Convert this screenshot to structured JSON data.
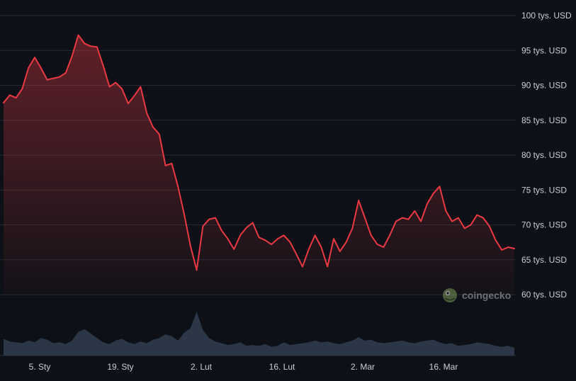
{
  "chart_data": {
    "type": "area",
    "title": "",
    "xlabel": "",
    "ylabel": "",
    "currency_unit": "tys. USD",
    "y_ticks": [
      "100 tys. USD",
      "95 tys. USD",
      "90 tys. USD",
      "85 tys. USD",
      "80 tys. USD",
      "75 tys. USD",
      "70 tys. USD",
      "65 tys. USD",
      "60 tys. USD"
    ],
    "x_ticks": [
      "5. Sty",
      "19. Sty",
      "2. Lut",
      "16. Lut",
      "2. Mar",
      "16. Mar"
    ],
    "ylim": [
      60000,
      100000
    ],
    "grid": true,
    "colors": {
      "line": "#ea3943",
      "fill_top": "#ea3943",
      "volume": "#2b3646",
      "grid": "#222a33",
      "background": "#0d1117"
    },
    "series": [
      {
        "values": [
          [
            0,
            87500
          ],
          [
            1,
            88600
          ],
          [
            2,
            88200
          ],
          [
            3,
            89500
          ],
          [
            4,
            92500
          ],
          [
            5,
            94000
          ],
          [
            6,
            92500
          ],
          [
            7,
            90800
          ],
          [
            8,
            91000
          ],
          [
            9,
            91200
          ],
          [
            10,
            91800
          ],
          [
            11,
            94200
          ],
          [
            12,
            97200
          ],
          [
            13,
            96000
          ],
          [
            14,
            95600
          ],
          [
            15,
            95500
          ],
          [
            16,
            92800
          ],
          [
            17,
            89800
          ],
          [
            18,
            90400
          ],
          [
            19,
            89500
          ],
          [
            20,
            87400
          ],
          [
            21,
            88500
          ],
          [
            22,
            89800
          ],
          [
            23,
            86000
          ],
          [
            24,
            84000
          ],
          [
            25,
            83000
          ],
          [
            26,
            78500
          ],
          [
            27,
            78800
          ],
          [
            28,
            75500
          ],
          [
            29,
            71500
          ],
          [
            30,
            67000
          ],
          [
            31,
            63500
          ],
          [
            32,
            69800
          ],
          [
            33,
            70800
          ],
          [
            34,
            71000
          ],
          [
            35,
            69200
          ],
          [
            36,
            68000
          ],
          [
            37,
            66500
          ],
          [
            38,
            68500
          ],
          [
            39,
            69600
          ],
          [
            40,
            70300
          ],
          [
            41,
            68200
          ],
          [
            42,
            67800
          ],
          [
            43,
            67200
          ],
          [
            44,
            68000
          ],
          [
            45,
            68500
          ],
          [
            46,
            67500
          ],
          [
            47,
            65800
          ],
          [
            48,
            64000
          ],
          [
            49,
            66500
          ],
          [
            50,
            68500
          ],
          [
            51,
            66800
          ],
          [
            52,
            64000
          ],
          [
            53,
            68000
          ],
          [
            54,
            66200
          ],
          [
            55,
            67500
          ],
          [
            56,
            69500
          ],
          [
            57,
            73500
          ],
          [
            58,
            71000
          ],
          [
            59,
            68500
          ],
          [
            60,
            67200
          ],
          [
            61,
            66800
          ],
          [
            62,
            68500
          ],
          [
            63,
            70500
          ],
          [
            64,
            71000
          ],
          [
            65,
            70800
          ],
          [
            66,
            72000
          ],
          [
            67,
            70500
          ],
          [
            68,
            73000
          ],
          [
            69,
            74500
          ],
          [
            70,
            75500
          ],
          [
            71,
            72000
          ],
          [
            72,
            70500
          ],
          [
            73,
            71000
          ],
          [
            74,
            69500
          ],
          [
            75,
            70000
          ],
          [
            76,
            71400
          ],
          [
            77,
            71000
          ],
          [
            78,
            69800
          ],
          [
            79,
            67800
          ],
          [
            80,
            66400
          ],
          [
            81,
            66800
          ],
          [
            82,
            66600
          ]
        ]
      }
    ],
    "volume": [
      [
        0,
        0.38
      ],
      [
        1,
        0.32
      ],
      [
        2,
        0.3
      ],
      [
        3,
        0.28
      ],
      [
        4,
        0.34
      ],
      [
        5,
        0.3
      ],
      [
        6,
        0.4
      ],
      [
        7,
        0.36
      ],
      [
        8,
        0.28
      ],
      [
        9,
        0.3
      ],
      [
        10,
        0.26
      ],
      [
        11,
        0.34
      ],
      [
        12,
        0.54
      ],
      [
        13,
        0.6
      ],
      [
        14,
        0.5
      ],
      [
        15,
        0.4
      ],
      [
        16,
        0.3
      ],
      [
        17,
        0.26
      ],
      [
        18,
        0.34
      ],
      [
        19,
        0.38
      ],
      [
        20,
        0.3
      ],
      [
        21,
        0.26
      ],
      [
        22,
        0.32
      ],
      [
        23,
        0.28
      ],
      [
        24,
        0.36
      ],
      [
        25,
        0.4
      ],
      [
        26,
        0.48
      ],
      [
        27,
        0.44
      ],
      [
        28,
        0.34
      ],
      [
        29,
        0.52
      ],
      [
        30,
        0.62
      ],
      [
        31,
        1.0
      ],
      [
        32,
        0.58
      ],
      [
        33,
        0.4
      ],
      [
        34,
        0.32
      ],
      [
        35,
        0.28
      ],
      [
        36,
        0.24
      ],
      [
        37,
        0.26
      ],
      [
        38,
        0.3
      ],
      [
        39,
        0.22
      ],
      [
        40,
        0.24
      ],
      [
        41,
        0.22
      ],
      [
        42,
        0.26
      ],
      [
        43,
        0.2
      ],
      [
        44,
        0.22
      ],
      [
        45,
        0.3
      ],
      [
        46,
        0.24
      ],
      [
        47,
        0.26
      ],
      [
        48,
        0.28
      ],
      [
        49,
        0.3
      ],
      [
        50,
        0.34
      ],
      [
        51,
        0.3
      ],
      [
        52,
        0.32
      ],
      [
        53,
        0.28
      ],
      [
        54,
        0.26
      ],
      [
        55,
        0.3
      ],
      [
        56,
        0.34
      ],
      [
        57,
        0.42
      ],
      [
        58,
        0.34
      ],
      [
        59,
        0.36
      ],
      [
        60,
        0.3
      ],
      [
        61,
        0.28
      ],
      [
        62,
        0.3
      ],
      [
        63,
        0.32
      ],
      [
        64,
        0.34
      ],
      [
        65,
        0.3
      ],
      [
        66,
        0.28
      ],
      [
        67,
        0.32
      ],
      [
        68,
        0.34
      ],
      [
        69,
        0.36
      ],
      [
        70,
        0.3
      ],
      [
        71,
        0.26
      ],
      [
        72,
        0.28
      ],
      [
        73,
        0.22
      ],
      [
        74,
        0.24
      ],
      [
        75,
        0.26
      ],
      [
        76,
        0.3
      ],
      [
        77,
        0.28
      ],
      [
        78,
        0.26
      ],
      [
        79,
        0.22
      ],
      [
        80,
        0.2
      ],
      [
        81,
        0.22
      ],
      [
        82,
        0.18
      ]
    ]
  },
  "watermark": {
    "text": "coingecko",
    "icon": "coingecko-gecko-icon"
  }
}
